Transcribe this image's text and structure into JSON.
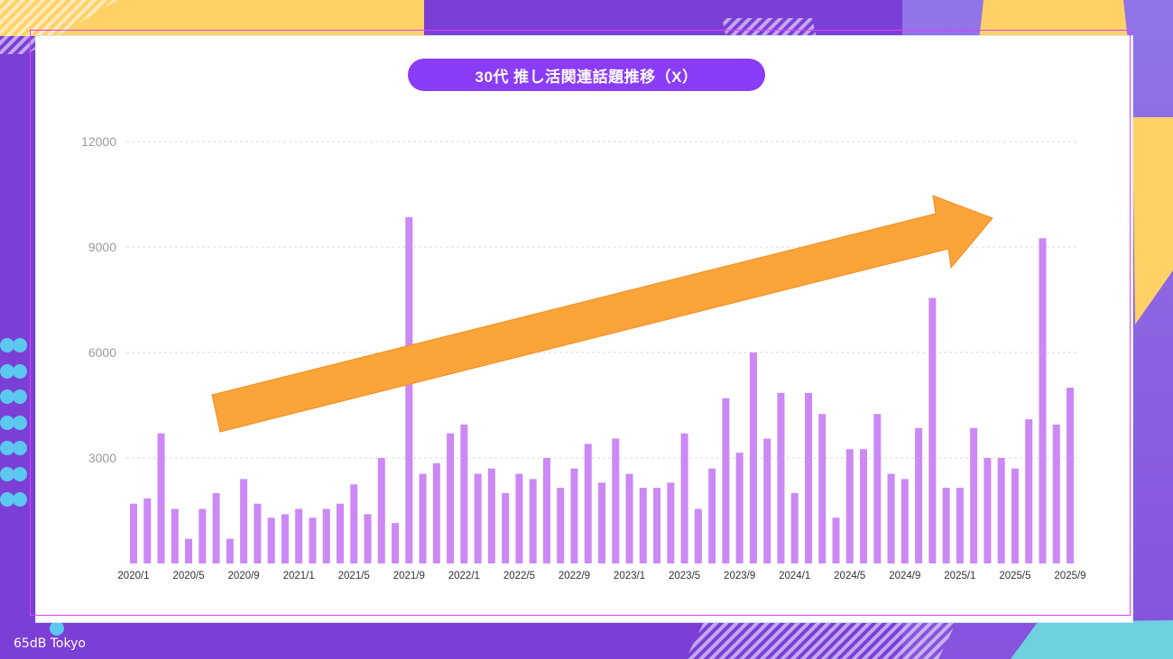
{
  "brand": "65dB Tokyo",
  "colors": {
    "background": "#7B3FD6",
    "bar": "#CC88F5",
    "title_pill": "#8B3CF7",
    "arrow": "#FAA43A",
    "grid": "#d9d9d9",
    "tick_text": "#9a9a9a"
  },
  "chart_data": {
    "type": "bar",
    "title": "30代 推し活関連話題推移（X）",
    "xlabel": "",
    "ylabel": "",
    "ylim": [
      0,
      12000
    ],
    "yticks": [
      3000,
      6000,
      9000,
      12000
    ],
    "grid": true,
    "annotation": "upward-trend-arrow",
    "categories": [
      "2020/1",
      "2020/2",
      "2020/3",
      "2020/4",
      "2020/5",
      "2020/6",
      "2020/7",
      "2020/8",
      "2020/9",
      "2020/10",
      "2020/11",
      "2020/12",
      "2021/1",
      "2021/2",
      "2021/3",
      "2021/4",
      "2021/5",
      "2021/6",
      "2021/7",
      "2021/8",
      "2021/9",
      "2021/10",
      "2021/11",
      "2021/12",
      "2022/1",
      "2022/2",
      "2022/3",
      "2022/4",
      "2022/5",
      "2022/6",
      "2022/7",
      "2022/8",
      "2022/9",
      "2022/10",
      "2022/11",
      "2022/12",
      "2023/1",
      "2023/2",
      "2023/3",
      "2023/4",
      "2023/5",
      "2023/6",
      "2023/7",
      "2023/8",
      "2023/9",
      "2023/10",
      "2023/11",
      "2023/12",
      "2024/1",
      "2024/2",
      "2024/3",
      "2024/4",
      "2024/5",
      "2024/6",
      "2024/7",
      "2024/8",
      "2024/9",
      "2024/10",
      "2024/11",
      "2024/12",
      "2025/1",
      "2025/2",
      "2025/3",
      "2025/4",
      "2025/5",
      "2025/6",
      "2025/7",
      "2025/8",
      "2025/9"
    ],
    "tick_labels": [
      "2020/1",
      "2020/5",
      "2020/9",
      "2021/1",
      "2021/5",
      "2021/9",
      "2022/1",
      "2022/5",
      "2022/9",
      "2023/1",
      "2023/5",
      "2023/9",
      "2024/1",
      "2024/5",
      "2024/9",
      "2025/1",
      "2025/5",
      "2025/9"
    ],
    "values": [
      1700,
      1850,
      3700,
      1550,
      700,
      1550,
      2000,
      700,
      2400,
      1700,
      1300,
      1400,
      1550,
      1300,
      1550,
      1700,
      2250,
      1400,
      3000,
      1150,
      9850,
      2550,
      2850,
      3700,
      3950,
      2550,
      2700,
      2000,
      2550,
      2400,
      3000,
      2150,
      2700,
      3400,
      2300,
      3550,
      2550,
      2150,
      2150,
      2300,
      3700,
      1550,
      2700,
      4700,
      3150,
      6000,
      3550,
      4850,
      2000,
      4850,
      4250,
      1300,
      3250,
      3250,
      4250,
      2550,
      2400,
      3850,
      7550,
      2150,
      2150,
      3850,
      3000,
      3000,
      2700,
      4100,
      9250,
      3950,
      5000
    ]
  }
}
